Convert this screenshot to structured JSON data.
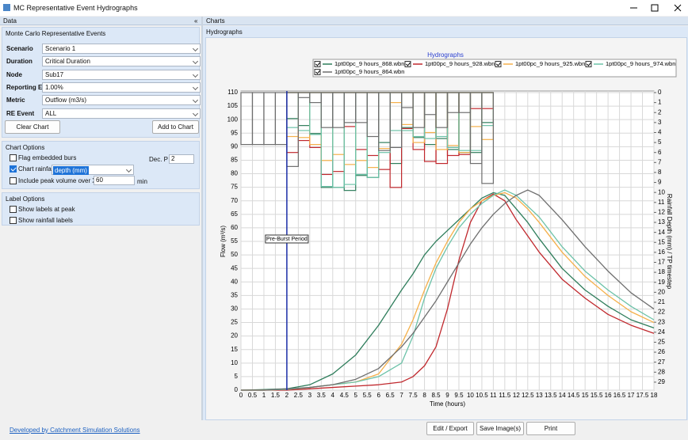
{
  "window": {
    "title": "MC Representative Event Hydrographs"
  },
  "data_panel": {
    "header": "Data",
    "group": "Monte Carlo Representative Events",
    "fields": [
      {
        "label": "Scenario",
        "value": "Scenario 1"
      },
      {
        "label": "Duration",
        "value": "Critical Duration"
      },
      {
        "label": "Node",
        "value": "Sub17"
      },
      {
        "label": "Reporting EP",
        "value": "1.00%"
      },
      {
        "label": "Metric",
        "value": "Outflow (m3/s)"
      },
      {
        "label": "RE Event",
        "value": "ALL"
      }
    ],
    "buttons": [
      "Clear Chart",
      "Add to Chart"
    ]
  },
  "chart_options": {
    "header": "Chart Options",
    "flag": {
      "label": "Flag embedded burs",
      "checked": false
    },
    "dec_label": "Dec. P",
    "dec_value": "2",
    "rainfall": {
      "label": "Chart rainfall",
      "checked": true,
      "value": "depth (mm)"
    },
    "peak": {
      "label": "Include peak volume over X m",
      "checked": false,
      "value": "60",
      "unit": "min"
    }
  },
  "label_options": {
    "header": "Label Options",
    "items": [
      {
        "label": "Show labels at peak",
        "checked": false
      },
      {
        "label": "Show rainfall labels",
        "checked": false
      }
    ]
  },
  "charts_panel": {
    "header": "Charts",
    "tab": "Hydrographs"
  },
  "footer": {
    "link": "Developed by Catchment Simulation Solutions",
    "buttons": [
      "Edit / Export",
      "Save Image(s)",
      "Print"
    ]
  },
  "chart_data": {
    "type": "line",
    "title": "Hydrographs",
    "x_label": "Time (hours)",
    "y_label": "Flow (m³/s)",
    "y2_label": "Rainfall Depth (mm) / TP timestep",
    "x": [
      0,
      1,
      2,
      3,
      4,
      5,
      6,
      7,
      7.5,
      8,
      8.5,
      9,
      9.5,
      10,
      10.5,
      11,
      11.5,
      12,
      12.5,
      13,
      14,
      15,
      16,
      17,
      18
    ],
    "xlim": [
      0,
      18
    ],
    "xticks": [
      0,
      0.5,
      1,
      1.5,
      2,
      2.5,
      3,
      3.5,
      4,
      4.5,
      5,
      5.5,
      6,
      6.5,
      7,
      7.5,
      8,
      8.5,
      9,
      9.5,
      10,
      10.5,
      11,
      11.5,
      12,
      12.5,
      13,
      13.5,
      14,
      14.5,
      15,
      15.5,
      16,
      16.5,
      17,
      17.5,
      18
    ],
    "ylim": [
      0,
      110
    ],
    "yticks": [
      0,
      5,
      10,
      15,
      20,
      25,
      30,
      35,
      40,
      45,
      50,
      55,
      60,
      65,
      70,
      75,
      80,
      85,
      90,
      95,
      100,
      105,
      110
    ],
    "y2lim": [
      29.8,
      0
    ],
    "y2ticks": [
      0,
      1,
      2,
      3,
      4,
      5,
      6,
      7,
      8,
      9,
      10,
      11,
      12,
      13,
      14,
      15,
      16,
      17,
      18,
      19,
      20,
      21,
      22,
      23,
      24,
      25,
      26,
      27,
      28,
      29
    ],
    "grid": true,
    "legend": "top",
    "rain_x": [
      0,
      0.5,
      1,
      1.5,
      2,
      2.5,
      3,
      3.5,
      4,
      4.5,
      5,
      5.5,
      6,
      6.5,
      7,
      7.5,
      8,
      8.5,
      9,
      9.5,
      10,
      10.5,
      11
    ],
    "annotation": {
      "text": "Pre-Burst Period",
      "x": 2,
      "color": "#1c2fa8"
    },
    "series": [
      {
        "name": "1pt00pc_9 hours_868.wbn",
        "color": "#2e7d5b",
        "values": [
          0,
          0.2,
          0.5,
          2,
          6,
          13,
          24,
          37,
          43,
          50,
          55,
          59,
          63,
          67,
          71,
          73,
          72,
          67,
          62,
          56,
          45,
          37,
          31,
          26,
          23
        ],
        "rain": [
          null,
          null,
          null,
          null,
          2.6,
          3.3,
          4.1,
          9.5,
          9.5,
          9.8,
          8.3,
          8.5,
          5,
          7.1,
          3.5,
          4.5,
          5.2,
          4.6,
          5.7,
          6,
          6,
          3
        ]
      },
      {
        "name": "1pt00pc_9 hours_928.wbn",
        "color": "#c0282d",
        "values": [
          0,
          0,
          0,
          0.5,
          1,
          1.5,
          2,
          3,
          5,
          9,
          16,
          30,
          48,
          62,
          70,
          72.5,
          70,
          63,
          57,
          51,
          41,
          34,
          28,
          24,
          21
        ],
        "rain": [
          null,
          null,
          null,
          null,
          6,
          4.8,
          5.5,
          8.2,
          7.9,
          3.4,
          5.7,
          6.3,
          7.7,
          9.5,
          3.6,
          5.7,
          6.9,
          7.1,
          6.3,
          6.2,
          1.6,
          1.6
        ]
      },
      {
        "name": "1pt00pc_9 hours_925.wbn",
        "color": "#f5b04a",
        "values": [
          0,
          0,
          0.3,
          1,
          2,
          3,
          6,
          17,
          26,
          37,
          47,
          55,
          62,
          67,
          70,
          72,
          73,
          71,
          67,
          62,
          51,
          42,
          35,
          29,
          25
        ],
        "rain": [
          null,
          null,
          null,
          null,
          4.4,
          4.5,
          5.2,
          6.8,
          6.2,
          7.2,
          6.8,
          7.5,
          5.6,
          1,
          3.2,
          5,
          4,
          5.7,
          5.3,
          6,
          3.4,
          4.7
        ]
      },
      {
        "name": "1pt00pc_9 hours_974.wbn",
        "color": "#6cc2a8",
        "values": [
          0,
          0,
          0.3,
          1,
          2,
          3,
          5,
          10,
          20,
          34,
          45,
          53,
          60,
          65,
          69,
          72,
          74,
          72,
          68,
          64,
          53,
          44,
          37,
          31,
          26
        ],
        "rain": [
          null,
          null,
          null,
          null,
          3.5,
          3.8,
          4.2,
          9.4,
          9.5,
          9.2,
          8.2,
          8.5,
          6,
          3.8,
          3.8,
          4.4,
          4.6,
          4.4,
          5.5,
          5.8,
          5.8,
          3.3
        ]
      },
      {
        "name": "1pt00pc_9 hours_864.wbn",
        "color": "#6e6e6e",
        "values": [
          0,
          0,
          0.5,
          1,
          2,
          4,
          8,
          16,
          21,
          27,
          33,
          40,
          47,
          54,
          60,
          65,
          69,
          72,
          74,
          72,
          63,
          53,
          44,
          36,
          30
        ],
        "rain": [
          5.2,
          5.2,
          5.2,
          5.2,
          7.4,
          0.5,
          1,
          3.5,
          3.5,
          3,
          3,
          4.4,
          5.8,
          5.5,
          1.5,
          3.5,
          2.2,
          3.5,
          2,
          2,
          7.1,
          9.1
        ]
      }
    ]
  }
}
